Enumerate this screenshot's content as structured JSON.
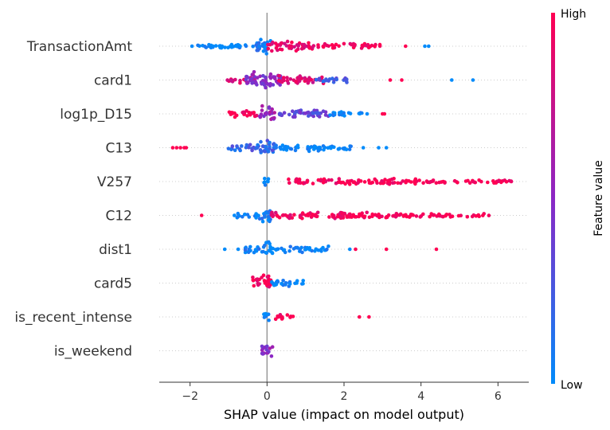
{
  "chart_data": {
    "type": "scatter",
    "subtype": "shap-beeswarm",
    "xlabel": "SHAP value (impact on model output)",
    "xlim": [
      -2.8,
      6.8
    ],
    "xticks": [
      -2,
      0,
      2,
      4,
      6
    ],
    "xtick_labels": [
      "−2",
      "0",
      "2",
      "4",
      "6"
    ],
    "zero_line": 0,
    "features": [
      "TransactionAmt",
      "card1",
      "log1p_D15",
      "C13",
      "V257",
      "C12",
      "dist1",
      "card5",
      "is_recent_intense",
      "is_weekend"
    ],
    "colorbar": {
      "title": "Feature value",
      "high_label": "High",
      "low_label": "Low",
      "low_color": "#008bfb",
      "high_color": "#ff0052"
    },
    "series": [
      {
        "feature": "TransactionAmt",
        "segments": [
          {
            "range": [
              -1.95,
              -0.2
            ],
            "density": 0.12,
            "color": 0.0
          },
          {
            "range": [
              -0.3,
              0.1
            ],
            "density": 1.0,
            "color": 0.05
          },
          {
            "range": [
              0.0,
              1.2
            ],
            "density": 0.55,
            "color": 0.9
          },
          {
            "range": [
              1.2,
              3.0
            ],
            "density": 0.15,
            "color": 0.95
          },
          {
            "points": [
              -1.95,
              -1.4,
              -0.95,
              -0.8,
              -0.7,
              3.6,
              4.1,
              4.2
            ],
            "colors": [
              0.0,
              0.0,
              0.0,
              0.0,
              0.0,
              1.0,
              0.0,
              0.0
            ]
          }
        ]
      },
      {
        "feature": "card1",
        "segments": [
          {
            "range": [
              -1.1,
              -0.3
            ],
            "density": 0.22,
            "color": 0.85
          },
          {
            "range": [
              -0.55,
              0.4
            ],
            "density": 1.0,
            "color": 0.5
          },
          {
            "range": [
              0.3,
              1.5
            ],
            "density": 0.45,
            "color": 0.85
          },
          {
            "range": [
              1.2,
              2.1
            ],
            "density": 0.18,
            "color": 0.25
          },
          {
            "points": [
              3.2,
              3.5,
              4.8,
              5.35
            ],
            "colors": [
              1.0,
              1.0,
              0.0,
              0.0
            ]
          }
        ]
      },
      {
        "feature": "log1p_D15",
        "segments": [
          {
            "range": [
              -1.05,
              -0.2
            ],
            "density": 0.28,
            "color": 1.0
          },
          {
            "range": [
              -0.2,
              0.2
            ],
            "density": 1.0,
            "color": 0.55
          },
          {
            "range": [
              0.2,
              1.6
            ],
            "density": 0.38,
            "color": 0.35
          },
          {
            "range": [
              1.6,
              2.5
            ],
            "density": 0.15,
            "color": 0.05
          },
          {
            "points": [
              2.6,
              3.0,
              3.05
            ],
            "colors": [
              0.0,
              1.0,
              1.0
            ]
          }
        ]
      },
      {
        "feature": "C13",
        "segments": [
          {
            "points": [
              -2.45,
              -2.35,
              -2.25,
              -2.15,
              -2.1
            ],
            "colors": [
              1.0,
              1.0,
              1.0,
              1.0,
              1.0
            ]
          },
          {
            "range": [
              -1.05,
              -0.25
            ],
            "density": 0.25,
            "color": 0.2
          },
          {
            "range": [
              -0.3,
              0.2
            ],
            "density": 1.0,
            "color": 0.2
          },
          {
            "range": [
              0.2,
              2.2
            ],
            "density": 0.3,
            "color": 0.0
          },
          {
            "points": [
              2.5,
              2.9,
              3.1
            ],
            "colors": [
              0.0,
              0.0,
              0.0
            ]
          }
        ]
      },
      {
        "feature": "V257",
        "segments": [
          {
            "range": [
              -0.1,
              0.05
            ],
            "density": 0.7,
            "color": 0.0
          },
          {
            "range": [
              0.55,
              4.0
            ],
            "density": 0.22,
            "color": 1.0
          },
          {
            "range": [
              4.0,
              6.4
            ],
            "density": 0.06,
            "color": 1.0
          }
        ]
      },
      {
        "feature": "C12",
        "segments": [
          {
            "points": [
              -1.7,
              -0.85
            ],
            "colors": [
              1.0,
              0.0
            ]
          },
          {
            "range": [
              -0.8,
              -0.2
            ],
            "density": 0.2,
            "color": 0.0
          },
          {
            "range": [
              -0.2,
              0.1
            ],
            "density": 0.9,
            "color": 0.1
          },
          {
            "range": [
              0.1,
              2.0
            ],
            "density": 0.3,
            "color": 0.95
          },
          {
            "range": [
              1.7,
              3.2
            ],
            "density": 0.25,
            "color": 1.0
          },
          {
            "range": [
              3.2,
              5.9
            ],
            "density": 0.07,
            "color": 1.0
          }
        ]
      },
      {
        "feature": "dist1",
        "segments": [
          {
            "points": [
              -1.1,
              -0.75
            ],
            "colors": [
              0.0,
              0.0
            ]
          },
          {
            "range": [
              -0.6,
              -0.1
            ],
            "density": 0.35,
            "color": 0.05
          },
          {
            "range": [
              -0.1,
              0.15
            ],
            "density": 1.0,
            "color": 0.0
          },
          {
            "range": [
              0.15,
              1.6
            ],
            "density": 0.25,
            "color": 0.0
          },
          {
            "points": [
              2.15,
              2.3,
              3.1,
              4.4
            ],
            "colors": [
              0.0,
              1.0,
              1.0,
              1.0
            ]
          }
        ]
      },
      {
        "feature": "card5",
        "segments": [
          {
            "range": [
              -0.4,
              0.1
            ],
            "density": 1.0,
            "color": 0.95
          },
          {
            "range": [
              0.1,
              1.0
            ],
            "density": 0.3,
            "color": 0.0
          }
        ]
      },
      {
        "feature": "is_recent_intense",
        "segments": [
          {
            "range": [
              -0.1,
              0.05
            ],
            "density": 0.7,
            "color": 0.0
          },
          {
            "range": [
              0.2,
              0.7
            ],
            "density": 0.3,
            "color": 1.0
          },
          {
            "points": [
              2.4,
              2.65
            ],
            "colors": [
              1.0,
              1.0
            ]
          }
        ]
      },
      {
        "feature": "is_weekend",
        "segments": [
          {
            "range": [
              -0.15,
              0.15
            ],
            "density": 0.9,
            "color": 0.5
          }
        ]
      }
    ]
  }
}
